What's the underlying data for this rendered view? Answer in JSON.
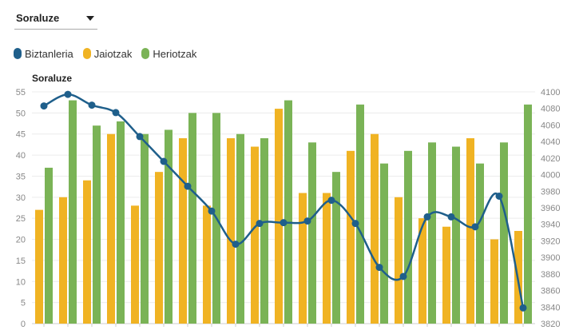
{
  "selector": {
    "selected": "Soraluze",
    "icon": "caret-down-icon"
  },
  "legend": [
    {
      "label": "Biztanleria",
      "color": "#1f5f8b"
    },
    {
      "label": "Jaiotzak",
      "color": "#f0b323"
    },
    {
      "label": "Heriotzak",
      "color": "#7ab356"
    }
  ],
  "chart_data": {
    "type": "bar",
    "title": "Soraluze",
    "left_axis": {
      "min": 0,
      "max": 55,
      "ticks": [
        "0",
        "5",
        "10",
        "15",
        "20",
        "25",
        "30",
        "35",
        "40",
        "45",
        "50",
        "55"
      ]
    },
    "right_axis": {
      "min": 3820,
      "max": 4100,
      "ticks": [
        "3820",
        "3840",
        "3860",
        "3880",
        "3900",
        "3920",
        "3940",
        "3960",
        "3980",
        "4000",
        "4020",
        "4040",
        "4060",
        "4080",
        "4100"
      ]
    },
    "grid": true,
    "legend_position": "top-left",
    "series": [
      {
        "name": "Jaiotzak",
        "type": "bar",
        "axis": "left",
        "color": "#f0b323",
        "values": [
          27,
          30,
          34,
          45,
          28,
          36,
          44,
          28,
          44,
          42,
          51,
          31,
          31,
          41,
          45,
          30,
          25,
          23,
          44,
          20,
          22
        ]
      },
      {
        "name": "Heriotzak",
        "type": "bar",
        "axis": "left",
        "color": "#7ab356",
        "values": [
          37,
          53,
          47,
          48,
          45,
          46,
          50,
          50,
          45,
          44,
          53,
          43,
          36,
          52,
          38,
          41,
          43,
          42,
          38,
          43,
          52
        ]
      },
      {
        "name": "Biztanleria",
        "type": "line",
        "axis": "right",
        "color": "#1f5f8b",
        "values": [
          4083,
          4097,
          4084,
          4075,
          4046,
          4016,
          3986,
          3956,
          3916,
          3941,
          3942,
          3944,
          3969,
          3941,
          3888,
          3877,
          3949,
          3949,
          3937,
          3974,
          3839
        ]
      }
    ]
  }
}
